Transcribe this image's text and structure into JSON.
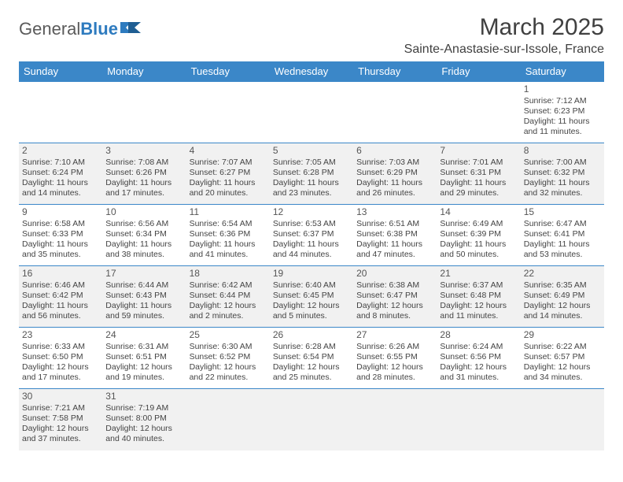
{
  "logo": {
    "text1": "General",
    "text2": "Blue"
  },
  "title": "March 2025",
  "location": "Sainte-Anastasie-sur-Issole, France",
  "colors": {
    "header_bg": "#3b87c8",
    "header_text": "#ffffff",
    "cell_border": "#3b87c8",
    "shade_bg": "#f1f1f1",
    "text": "#444444"
  },
  "day_headers": [
    "Sunday",
    "Monday",
    "Tuesday",
    "Wednesday",
    "Thursday",
    "Friday",
    "Saturday"
  ],
  "weeks": [
    {
      "shade": false,
      "days": [
        null,
        null,
        null,
        null,
        null,
        null,
        {
          "n": "1",
          "sunrise": "Sunrise: 7:12 AM",
          "sunset": "Sunset: 6:23 PM",
          "daylight1": "Daylight: 11 hours",
          "daylight2": "and 11 minutes."
        }
      ]
    },
    {
      "shade": true,
      "days": [
        {
          "n": "2",
          "sunrise": "Sunrise: 7:10 AM",
          "sunset": "Sunset: 6:24 PM",
          "daylight1": "Daylight: 11 hours",
          "daylight2": "and 14 minutes."
        },
        {
          "n": "3",
          "sunrise": "Sunrise: 7:08 AM",
          "sunset": "Sunset: 6:26 PM",
          "daylight1": "Daylight: 11 hours",
          "daylight2": "and 17 minutes."
        },
        {
          "n": "4",
          "sunrise": "Sunrise: 7:07 AM",
          "sunset": "Sunset: 6:27 PM",
          "daylight1": "Daylight: 11 hours",
          "daylight2": "and 20 minutes."
        },
        {
          "n": "5",
          "sunrise": "Sunrise: 7:05 AM",
          "sunset": "Sunset: 6:28 PM",
          "daylight1": "Daylight: 11 hours",
          "daylight2": "and 23 minutes."
        },
        {
          "n": "6",
          "sunrise": "Sunrise: 7:03 AM",
          "sunset": "Sunset: 6:29 PM",
          "daylight1": "Daylight: 11 hours",
          "daylight2": "and 26 minutes."
        },
        {
          "n": "7",
          "sunrise": "Sunrise: 7:01 AM",
          "sunset": "Sunset: 6:31 PM",
          "daylight1": "Daylight: 11 hours",
          "daylight2": "and 29 minutes."
        },
        {
          "n": "8",
          "sunrise": "Sunrise: 7:00 AM",
          "sunset": "Sunset: 6:32 PM",
          "daylight1": "Daylight: 11 hours",
          "daylight2": "and 32 minutes."
        }
      ]
    },
    {
      "shade": false,
      "days": [
        {
          "n": "9",
          "sunrise": "Sunrise: 6:58 AM",
          "sunset": "Sunset: 6:33 PM",
          "daylight1": "Daylight: 11 hours",
          "daylight2": "and 35 minutes."
        },
        {
          "n": "10",
          "sunrise": "Sunrise: 6:56 AM",
          "sunset": "Sunset: 6:34 PM",
          "daylight1": "Daylight: 11 hours",
          "daylight2": "and 38 minutes."
        },
        {
          "n": "11",
          "sunrise": "Sunrise: 6:54 AM",
          "sunset": "Sunset: 6:36 PM",
          "daylight1": "Daylight: 11 hours",
          "daylight2": "and 41 minutes."
        },
        {
          "n": "12",
          "sunrise": "Sunrise: 6:53 AM",
          "sunset": "Sunset: 6:37 PM",
          "daylight1": "Daylight: 11 hours",
          "daylight2": "and 44 minutes."
        },
        {
          "n": "13",
          "sunrise": "Sunrise: 6:51 AM",
          "sunset": "Sunset: 6:38 PM",
          "daylight1": "Daylight: 11 hours",
          "daylight2": "and 47 minutes."
        },
        {
          "n": "14",
          "sunrise": "Sunrise: 6:49 AM",
          "sunset": "Sunset: 6:39 PM",
          "daylight1": "Daylight: 11 hours",
          "daylight2": "and 50 minutes."
        },
        {
          "n": "15",
          "sunrise": "Sunrise: 6:47 AM",
          "sunset": "Sunset: 6:41 PM",
          "daylight1": "Daylight: 11 hours",
          "daylight2": "and 53 minutes."
        }
      ]
    },
    {
      "shade": true,
      "days": [
        {
          "n": "16",
          "sunrise": "Sunrise: 6:46 AM",
          "sunset": "Sunset: 6:42 PM",
          "daylight1": "Daylight: 11 hours",
          "daylight2": "and 56 minutes."
        },
        {
          "n": "17",
          "sunrise": "Sunrise: 6:44 AM",
          "sunset": "Sunset: 6:43 PM",
          "daylight1": "Daylight: 11 hours",
          "daylight2": "and 59 minutes."
        },
        {
          "n": "18",
          "sunrise": "Sunrise: 6:42 AM",
          "sunset": "Sunset: 6:44 PM",
          "daylight1": "Daylight: 12 hours",
          "daylight2": "and 2 minutes."
        },
        {
          "n": "19",
          "sunrise": "Sunrise: 6:40 AM",
          "sunset": "Sunset: 6:45 PM",
          "daylight1": "Daylight: 12 hours",
          "daylight2": "and 5 minutes."
        },
        {
          "n": "20",
          "sunrise": "Sunrise: 6:38 AM",
          "sunset": "Sunset: 6:47 PM",
          "daylight1": "Daylight: 12 hours",
          "daylight2": "and 8 minutes."
        },
        {
          "n": "21",
          "sunrise": "Sunrise: 6:37 AM",
          "sunset": "Sunset: 6:48 PM",
          "daylight1": "Daylight: 12 hours",
          "daylight2": "and 11 minutes."
        },
        {
          "n": "22",
          "sunrise": "Sunrise: 6:35 AM",
          "sunset": "Sunset: 6:49 PM",
          "daylight1": "Daylight: 12 hours",
          "daylight2": "and 14 minutes."
        }
      ]
    },
    {
      "shade": false,
      "days": [
        {
          "n": "23",
          "sunrise": "Sunrise: 6:33 AM",
          "sunset": "Sunset: 6:50 PM",
          "daylight1": "Daylight: 12 hours",
          "daylight2": "and 17 minutes."
        },
        {
          "n": "24",
          "sunrise": "Sunrise: 6:31 AM",
          "sunset": "Sunset: 6:51 PM",
          "daylight1": "Daylight: 12 hours",
          "daylight2": "and 19 minutes."
        },
        {
          "n": "25",
          "sunrise": "Sunrise: 6:30 AM",
          "sunset": "Sunset: 6:52 PM",
          "daylight1": "Daylight: 12 hours",
          "daylight2": "and 22 minutes."
        },
        {
          "n": "26",
          "sunrise": "Sunrise: 6:28 AM",
          "sunset": "Sunset: 6:54 PM",
          "daylight1": "Daylight: 12 hours",
          "daylight2": "and 25 minutes."
        },
        {
          "n": "27",
          "sunrise": "Sunrise: 6:26 AM",
          "sunset": "Sunset: 6:55 PM",
          "daylight1": "Daylight: 12 hours",
          "daylight2": "and 28 minutes."
        },
        {
          "n": "28",
          "sunrise": "Sunrise: 6:24 AM",
          "sunset": "Sunset: 6:56 PM",
          "daylight1": "Daylight: 12 hours",
          "daylight2": "and 31 minutes."
        },
        {
          "n": "29",
          "sunrise": "Sunrise: 6:22 AM",
          "sunset": "Sunset: 6:57 PM",
          "daylight1": "Daylight: 12 hours",
          "daylight2": "and 34 minutes."
        }
      ]
    },
    {
      "shade": true,
      "days": [
        {
          "n": "30",
          "sunrise": "Sunrise: 7:21 AM",
          "sunset": "Sunset: 7:58 PM",
          "daylight1": "Daylight: 12 hours",
          "daylight2": "and 37 minutes."
        },
        {
          "n": "31",
          "sunrise": "Sunrise: 7:19 AM",
          "sunset": "Sunset: 8:00 PM",
          "daylight1": "Daylight: 12 hours",
          "daylight2": "and 40 minutes."
        },
        null,
        null,
        null,
        null,
        null
      ]
    }
  ]
}
